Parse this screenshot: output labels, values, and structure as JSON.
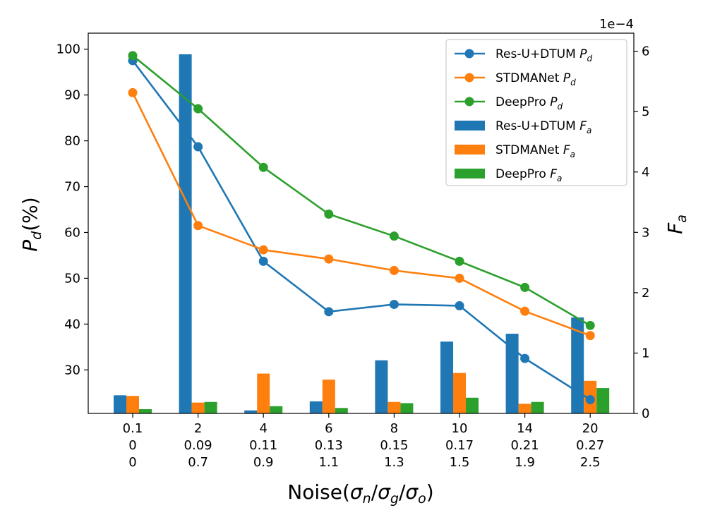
{
  "chart_data": {
    "type": "bar+line",
    "title": "",
    "categories": [
      [
        "0.1",
        "0",
        "0"
      ],
      [
        "2",
        "0.09",
        "0.7"
      ],
      [
        "4",
        "0.11",
        "0.9"
      ],
      [
        "6",
        "0.13",
        "1.1"
      ],
      [
        "8",
        "0.15",
        "1.3"
      ],
      [
        "10",
        "0.17",
        "1.5"
      ],
      [
        "14",
        "0.21",
        "1.9"
      ],
      [
        "20",
        "0.27",
        "2.5"
      ]
    ],
    "xlabel": "Noise(σn/σg/σo)",
    "xlabel_parts": {
      "prefix": "Noise(",
      "s1": "σ",
      "s1sub": "n",
      "sep1": "/",
      "s2": "σ",
      "s2sub": "g",
      "sep2": "/",
      "s3": "σ",
      "s3sub": "o",
      "suffix": ")"
    },
    "ylabel_left": "Pd(%)",
    "ylabel_left_parts": {
      "main": "P",
      "sub": "d",
      "rest": "(%)"
    },
    "ylabel_right": "Fa",
    "ylabel_right_parts": {
      "main": "F",
      "sub": "a"
    },
    "right_axis_exponent": "1e−4",
    "ylim_left": [
      20.5,
      103.5
    ],
    "yticks_left": [
      30,
      40,
      50,
      60,
      70,
      80,
      90,
      100
    ],
    "ylim_right": [
      0,
      6.3
    ],
    "yticks_right": [
      0,
      1,
      2,
      3,
      4,
      5,
      6
    ],
    "line_series": [
      {
        "name": "Res-U+DTUM Pd",
        "label_main": "Res-U+DTUM ",
        "label_sym": "P",
        "label_sub": "d",
        "color": "#1f77b4",
        "values": [
          97.5,
          78.7,
          53.7,
          42.7,
          44.3,
          44.0,
          32.5,
          23.5
        ]
      },
      {
        "name": "STDMANet Pd",
        "label_main": "STDMANet ",
        "label_sym": "P",
        "label_sub": "d",
        "color": "#ff7f0e",
        "values": [
          90.5,
          61.5,
          56.2,
          54.2,
          51.7,
          50.0,
          42.8,
          37.5
        ]
      },
      {
        "name": "DeepPro Pd",
        "label_main": "DeepPro ",
        "label_sym": "P",
        "label_sub": "d",
        "color": "#2ca02c",
        "values": [
          98.6,
          87.0,
          74.2,
          64.0,
          59.2,
          53.7,
          48.0,
          39.7
        ]
      }
    ],
    "bar_series": [
      {
        "name": "Res-U+DTUM Fa",
        "label_main": "Res-U+DTUM ",
        "label_sym": "F",
        "label_sub": "a",
        "color": "#1f77b4",
        "values": [
          0.3,
          5.95,
          0.05,
          0.2,
          0.88,
          1.19,
          1.32,
          1.59
        ]
      },
      {
        "name": "STDMANet Fa",
        "label_main": "STDMANet ",
        "label_sym": "F",
        "label_sub": "a",
        "color": "#ff7f0e",
        "values": [
          0.29,
          0.18,
          0.66,
          0.56,
          0.19,
          0.67,
          0.16,
          0.54
        ]
      },
      {
        "name": "DeepPro Fa",
        "label_main": "DeepPro ",
        "label_sym": "F",
        "label_sub": "a",
        "color": "#2ca02c",
        "values": [
          0.07,
          0.19,
          0.12,
          0.09,
          0.17,
          0.26,
          0.19,
          0.42
        ]
      }
    ],
    "grid": false,
    "legend_position": "top-right"
  }
}
